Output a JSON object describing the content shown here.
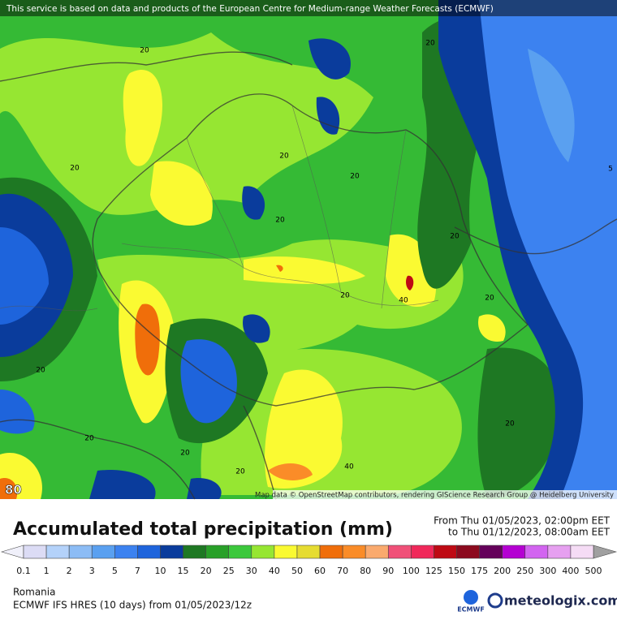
{
  "header": {
    "notice": "This service is based on data and products of the European Centre for Medium-range Weather Forecasts (ECMWF)"
  },
  "map": {
    "contour_labels": [
      "20",
      "20",
      "20",
      "20",
      "20",
      "20",
      "20",
      "20",
      "20",
      "40",
      "20",
      "20",
      "20",
      "20",
      "40",
      "20",
      "5"
    ],
    "corner_label": "80",
    "attribution": "Map data © OpenStreetMap contributors, rendering GIScience Research Group @ Heidelberg University"
  },
  "legend": {
    "title": "Accumulated total precipitation (mm)",
    "from": "From Thu 01/05/2023, 02:00pm EET",
    "to": "to Thu 01/12/2023, 08:00am EET",
    "labels": [
      "0.1",
      "1",
      "2",
      "3",
      "5",
      "7",
      "10",
      "15",
      "20",
      "25",
      "30",
      "40",
      "50",
      "60",
      "70",
      "80",
      "90",
      "100",
      "125",
      "150",
      "175",
      "200",
      "250",
      "300",
      "400",
      "500"
    ],
    "colors": [
      "#dcdcf5",
      "#b4d2fa",
      "#8cbcf5",
      "#5aa0f0",
      "#3c82f0",
      "#1e64dc",
      "#0a3c9c",
      "#1e7823",
      "#28a028",
      "#3cc83c",
      "#96e632",
      "#fafa32",
      "#e6dc32",
      "#f06e0a",
      "#fa8c28",
      "#faaa6e",
      "#f05078",
      "#f0285a",
      "#be0a14",
      "#8c0a1e",
      "#64005a",
      "#b400d2",
      "#d264f0",
      "#e6a0f0",
      "#f5dcf5"
    ]
  },
  "footer": {
    "region": "Romania",
    "model": "ECMWF IFS HRES (10 days) from 01/05/2023/12z",
    "ecmwf_logo": "ECMWF",
    "brand": "meteologix.com"
  }
}
